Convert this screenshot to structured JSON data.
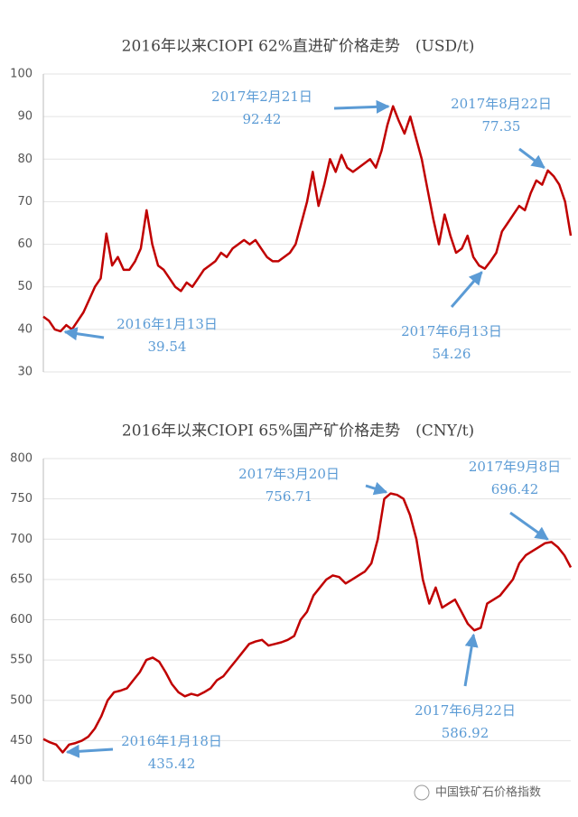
{
  "chart_data": [
    {
      "type": "line",
      "title": "2016年以来CIOPI 62%直进矿价格走势　(USD/t)",
      "ylim": [
        30,
        100
      ],
      "yticks": [
        30,
        40,
        50,
        60,
        70,
        80,
        90,
        100
      ],
      "grid": true,
      "series": [
        {
          "color": "#c00000",
          "values": [
            43,
            42,
            40,
            39.54,
            41,
            40,
            42,
            44,
            47,
            50,
            52,
            62.5,
            55,
            57,
            54,
            54,
            56,
            59,
            68,
            60,
            55,
            54,
            52,
            50,
            49,
            51,
            50,
            52,
            54,
            55,
            56,
            58,
            57,
            59,
            60,
            61,
            60,
            61,
            59,
            57,
            56,
            56,
            57,
            58,
            60,
            65,
            70,
            77,
            69,
            74,
            80,
            77,
            81,
            78,
            77,
            78,
            79,
            80,
            78,
            82,
            88,
            92.42,
            89,
            86,
            90,
            85,
            80,
            73,
            66,
            60,
            67,
            62,
            58,
            59,
            62,
            57,
            55,
            54.26,
            56,
            58,
            63,
            65,
            67,
            69,
            68,
            72,
            75,
            74,
            77.35,
            76,
            74,
            70,
            62
          ]
        }
      ],
      "annotations": [
        {
          "label": "2017年2月21日",
          "value": 92.42
        },
        {
          "label": "2017年8月22日",
          "value": 77.35
        },
        {
          "label": "2016年1月13日",
          "value": 39.54
        },
        {
          "label": "2017年6月13日",
          "value": 54.26
        }
      ]
    },
    {
      "type": "line",
      "title": "2016年以来CIOPI 65%国产矿价格走势　(CNY/t)",
      "ylim": [
        400,
        800
      ],
      "yticks": [
        400,
        450,
        500,
        550,
        600,
        650,
        700,
        750,
        800
      ],
      "grid": true,
      "series": [
        {
          "color": "#c00000",
          "values": [
            452,
            448,
            445,
            435.42,
            445,
            447,
            450,
            455,
            465,
            480,
            500,
            510,
            512,
            515,
            525,
            535,
            550,
            553,
            548,
            535,
            520,
            510,
            505,
            508,
            506,
            510,
            515,
            525,
            530,
            540,
            550,
            560,
            570,
            573,
            575,
            568,
            570,
            572,
            575,
            580,
            600,
            610,
            630,
            640,
            650,
            655,
            653,
            645,
            650,
            655,
            660,
            670,
            700,
            750,
            756.71,
            755,
            750,
            730,
            700,
            650,
            620,
            640,
            615,
            620,
            625,
            610,
            595,
            586.92,
            590,
            620,
            625,
            630,
            640,
            650,
            670,
            680,
            685,
            690,
            695,
            696.42,
            690,
            680,
            665
          ]
        }
      ],
      "annotations": [
        {
          "label": "2017年3月20日",
          "value": 756.71
        },
        {
          "label": "2017年9月8日",
          "value": 696.42
        },
        {
          "label": "2016年1月18日",
          "value": 435.42
        },
        {
          "label": "2017年6月22日",
          "value": 586.92
        }
      ]
    }
  ],
  "watermark": "中国铁矿石价格指数"
}
